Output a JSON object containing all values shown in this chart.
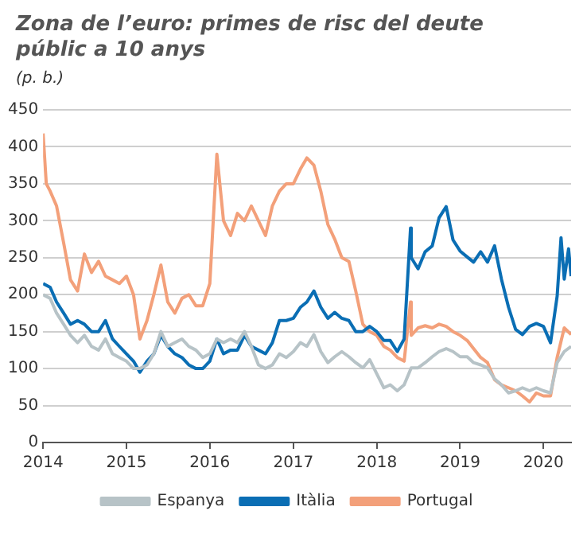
{
  "chart_data": {
    "type": "line",
    "title": "Zona de l’euro: primes de risc del deute públic a 10 anys",
    "subtitle": "(p. b.)",
    "xlim": [
      "2014",
      "2020-05-01"
    ],
    "xticks": [
      "2014",
      "2015",
      "2016",
      "2017",
      "2018",
      "2019",
      "2020"
    ],
    "ylim": [
      0,
      450
    ],
    "yticks": [
      0,
      50,
      100,
      150,
      200,
      250,
      300,
      350,
      400,
      450
    ],
    "grid": "y",
    "legend": "bottom",
    "series": [
      {
        "name": "Espanya",
        "color": "#b7c3c7",
        "x": [
          "2014-01",
          "2014-02",
          "2014-03",
          "2014-04",
          "2014-05",
          "2014-06",
          "2014-07",
          "2014-08",
          "2014-09",
          "2014-10",
          "2014-11",
          "2014-12",
          "2015-01",
          "2015-02",
          "2015-03",
          "2015-04",
          "2015-05",
          "2015-06",
          "2015-07",
          "2015-08",
          "2015-09",
          "2015-10",
          "2015-11",
          "2015-12",
          "2016-01",
          "2016-02",
          "2016-03",
          "2016-04",
          "2016-05",
          "2016-06",
          "2016-07",
          "2016-08",
          "2016-09",
          "2016-10",
          "2016-11",
          "2016-12",
          "2017-01",
          "2017-02",
          "2017-03",
          "2017-04",
          "2017-05",
          "2017-06",
          "2017-07",
          "2017-08",
          "2017-09",
          "2017-10",
          "2017-11",
          "2017-12",
          "2018-01",
          "2018-02",
          "2018-03",
          "2018-04",
          "2018-05",
          "2018-06",
          "2018-07",
          "2018-08",
          "2018-09",
          "2018-10",
          "2018-11",
          "2018-12",
          "2019-01",
          "2019-02",
          "2019-03",
          "2019-04",
          "2019-05",
          "2019-06",
          "2019-07",
          "2019-08",
          "2019-09",
          "2019-10",
          "2019-11",
          "2019-12",
          "2020-01",
          "2020-02",
          "2020-03",
          "2020-04",
          "2020-05"
        ],
        "values": [
          200,
          195,
          175,
          160,
          145,
          135,
          145,
          130,
          125,
          140,
          120,
          115,
          110,
          100,
          100,
          105,
          120,
          150,
          130,
          135,
          140,
          130,
          125,
          115,
          120,
          140,
          135,
          140,
          135,
          150,
          130,
          105,
          100,
          105,
          120,
          115,
          123,
          135,
          130,
          146,
          123,
          108,
          116,
          123,
          116,
          108,
          101,
          112,
          93,
          74,
          78,
          70,
          78,
          101,
          101,
          108,
          116,
          123,
          127,
          123,
          116,
          116,
          108,
          105,
          101,
          86,
          78,
          67,
          70,
          74,
          70,
          74,
          70,
          67,
          108,
          123,
          130
        ]
      },
      {
        "name": "Itàlia",
        "color": "#0a6eb4",
        "x": [
          "2014-01",
          "2014-02",
          "2014-03",
          "2014-04",
          "2014-05",
          "2014-06",
          "2014-07",
          "2014-08",
          "2014-09",
          "2014-10",
          "2014-11",
          "2014-12",
          "2015-01",
          "2015-02",
          "2015-03",
          "2015-04",
          "2015-05",
          "2015-06",
          "2015-07",
          "2015-08",
          "2015-09",
          "2015-10",
          "2015-11",
          "2015-12",
          "2016-01",
          "2016-02",
          "2016-03",
          "2016-04",
          "2016-05",
          "2016-06",
          "2016-07",
          "2016-08",
          "2016-09",
          "2016-10",
          "2016-11",
          "2016-12",
          "2017-01",
          "2017-02",
          "2017-03",
          "2017-04",
          "2017-05",
          "2017-06",
          "2017-07",
          "2017-08",
          "2017-09",
          "2017-10",
          "2017-11",
          "2017-12",
          "2018-01",
          "2018-02",
          "2018-03",
          "2018-04",
          "2018-05",
          "2018-05-29",
          "2018-06",
          "2018-07",
          "2018-08",
          "2018-09",
          "2018-10",
          "2018-11",
          "2018-12",
          "2019-01",
          "2019-02",
          "2019-03",
          "2019-04",
          "2019-05",
          "2019-06",
          "2019-07",
          "2019-08",
          "2019-09",
          "2019-10",
          "2019-11",
          "2019-12",
          "2020-01",
          "2020-02",
          "2020-03",
          "2020-03-18",
          "2020-04",
          "2020-04-20",
          "2020-05"
        ],
        "values": [
          215,
          210,
          190,
          175,
          160,
          165,
          160,
          150,
          150,
          165,
          140,
          130,
          120,
          110,
          95,
          110,
          120,
          145,
          130,
          120,
          115,
          105,
          100,
          100,
          110,
          140,
          120,
          125,
          125,
          145,
          130,
          125,
          120,
          135,
          165,
          165,
          168,
          183,
          190,
          205,
          183,
          168,
          176,
          168,
          165,
          150,
          150,
          157,
          150,
          138,
          138,
          123,
          140,
          290,
          250,
          235,
          258,
          266,
          304,
          319,
          274,
          259,
          251,
          244,
          258,
          244,
          266,
          221,
          183,
          153,
          146,
          157,
          161,
          157,
          135,
          198,
          277,
          221,
          262,
          225
        ]
      },
      {
        "name": "Portugal",
        "color": "#f3a07a",
        "x": [
          "2014-01-01",
          "2014-01-15",
          "2014-02",
          "2014-03",
          "2014-04",
          "2014-05",
          "2014-06",
          "2014-07",
          "2014-08",
          "2014-09",
          "2014-10",
          "2014-11",
          "2014-12",
          "2015-01",
          "2015-02",
          "2015-03",
          "2015-04",
          "2015-05",
          "2015-06",
          "2015-07",
          "2015-08",
          "2015-09",
          "2015-10",
          "2015-11",
          "2015-12",
          "2016-01",
          "2016-02",
          "2016-03",
          "2016-04",
          "2016-05",
          "2016-06",
          "2016-07",
          "2016-08",
          "2016-09",
          "2016-10",
          "2016-11",
          "2016-12",
          "2017-01",
          "2017-02",
          "2017-03",
          "2017-04",
          "2017-05",
          "2017-06",
          "2017-07",
          "2017-08",
          "2017-09",
          "2017-10",
          "2017-11",
          "2017-12",
          "2018-01",
          "2018-02",
          "2018-03",
          "2018-04",
          "2018-05",
          "2018-05-29",
          "2018-06",
          "2018-07",
          "2018-08",
          "2018-09",
          "2018-10",
          "2018-11",
          "2018-12",
          "2019-01",
          "2019-02",
          "2019-03",
          "2019-04",
          "2019-05",
          "2019-06",
          "2019-07",
          "2019-08",
          "2019-09",
          "2019-10",
          "2019-11",
          "2019-12",
          "2020-01",
          "2020-02",
          "2020-03",
          "2020-04",
          "2020-05"
        ],
        "values": [
          418,
          350,
          340,
          320,
          270,
          220,
          205,
          255,
          230,
          245,
          225,
          220,
          215,
          225,
          200,
          140,
          165,
          200,
          240,
          190,
          175,
          195,
          200,
          185,
          185,
          215,
          390,
          300,
          280,
          310,
          300,
          320,
          300,
          280,
          320,
          340,
          350,
          350,
          370,
          385,
          375,
          340,
          295,
          275,
          250,
          245,
          205,
          160,
          150,
          145,
          130,
          125,
          115,
          110,
          190,
          145,
          155,
          158,
          155,
          160,
          157,
          150,
          145,
          138,
          127,
          115,
          108,
          85,
          78,
          74,
          70,
          63,
          55,
          67,
          63,
          63,
          115,
          155,
          146
        ]
      }
    ]
  }
}
